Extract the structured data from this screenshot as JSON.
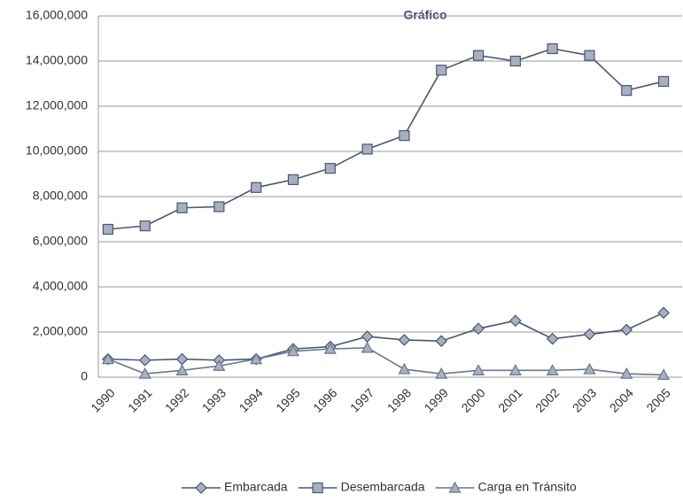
{
  "chart_data": {
    "type": "line",
    "title": "Gráfico",
    "categories": [
      "1990",
      "1991",
      "1992",
      "1993",
      "1994",
      "1995",
      "1996",
      "1997",
      "1998",
      "1999",
      "2000",
      "2001",
      "2002",
      "2003",
      "2004",
      "2005"
    ],
    "series": [
      {
        "name": "Embarcada",
        "color": "#4b5670",
        "marker": "diamond",
        "values": [
          800000,
          750000,
          800000,
          750000,
          800000,
          1250000,
          1350000,
          1800000,
          1650000,
          1600000,
          2150000,
          2500000,
          1700000,
          1900000,
          2100000,
          2850000
        ]
      },
      {
        "name": "Desembarcada",
        "color": "#4b5670",
        "marker": "square",
        "values": [
          6550000,
          6700000,
          7500000,
          7550000,
          8400000,
          8750000,
          9250000,
          10100000,
          10700000,
          13600000,
          14250000,
          14000000,
          14550000,
          14250000,
          12700000,
          13100000
        ]
      },
      {
        "name": "Carga en Tránsito",
        "color": "#6a7590",
        "marker": "triangle",
        "values": [
          800000,
          150000,
          300000,
          500000,
          800000,
          1150000,
          1250000,
          1300000,
          350000,
          150000,
          300000,
          300000,
          300000,
          350000,
          150000,
          100000
        ]
      }
    ],
    "ylim": [
      0,
      16000000
    ],
    "yticks": [
      0,
      {
        "value": 2000000,
        "label": "2,000,000"
      },
      {
        "value": 4000000,
        "label": "4,000,000"
      },
      {
        "value": 6000000,
        "label": "6,000,000"
      },
      {
        "value": 8000000,
        "label": "8,000,000"
      },
      {
        "value": 10000000,
        "label": "10,000,000"
      },
      {
        "value": 12000000,
        "label": "12,000,000"
      },
      {
        "value": 14000000,
        "label": "14,000,000"
      },
      {
        "value": 16000000,
        "label": "16,000,000"
      }
    ],
    "grid": true,
    "legend": "bottom"
  }
}
